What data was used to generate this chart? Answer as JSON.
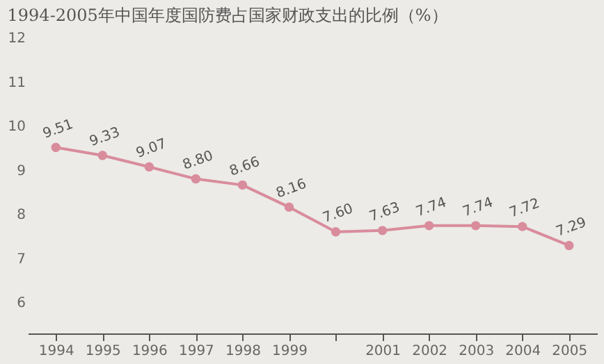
{
  "chart_data": {
    "type": "line",
    "title": "1994-2005年中国年度国防费占国家财政支出的比例（%）",
    "categories": [
      "1994",
      "1995",
      "1996",
      "1997",
      "1998",
      "1999",
      null,
      "2001",
      "2002",
      "2003",
      "2004",
      "2005"
    ],
    "values": [
      9.51,
      9.33,
      9.07,
      8.8,
      8.66,
      8.16,
      7.6,
      7.63,
      7.74,
      7.74,
      7.72,
      7.29
    ],
    "value_labels": [
      "9.51",
      "9.33",
      "9.07",
      "8.80",
      "8.66",
      "8.16",
      "7.60",
      "7.63",
      "7.74",
      "7.74",
      "7.72",
      "7.29"
    ],
    "color": "#d98c9c",
    "ylim": [
      5.3,
      12
    ],
    "yticks": [
      6,
      7,
      8,
      9,
      10,
      11,
      12
    ],
    "marker": "circle",
    "line_style": "solid"
  }
}
